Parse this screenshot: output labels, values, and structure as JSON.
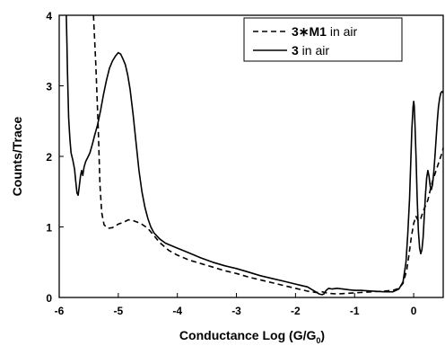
{
  "chart_data": {
    "type": "line",
    "xlabel": "Conductance Log (G/G",
    "xlabel_sub": "0",
    "xlabel_close": ")",
    "ylabel": "Counts/Trace",
    "xlim": [
      -6,
      0.5
    ],
    "ylim": [
      0,
      4
    ],
    "xticks": [
      -6,
      -5,
      -4,
      -3,
      -2,
      -1,
      0
    ],
    "yticks": [
      0,
      1,
      2,
      3,
      4
    ],
    "legend_position": "top-right",
    "series": [
      {
        "name_bold": "3∗M1",
        "name_rest": " in air",
        "style": "dashed",
        "color": "#000000",
        "points": [
          [
            -5.42,
            4.0
          ],
          [
            -5.38,
            3.3
          ],
          [
            -5.34,
            2.4
          ],
          [
            -5.31,
            1.6
          ],
          [
            -5.28,
            1.2
          ],
          [
            -5.24,
            1.03
          ],
          [
            -5.18,
            0.98
          ],
          [
            -5.1,
            0.99
          ],
          [
            -5.0,
            1.04
          ],
          [
            -4.9,
            1.07
          ],
          [
            -4.83,
            1.1
          ],
          [
            -4.75,
            1.09
          ],
          [
            -4.62,
            1.05
          ],
          [
            -4.5,
            0.98
          ],
          [
            -4.4,
            0.88
          ],
          [
            -4.3,
            0.78
          ],
          [
            -4.15,
            0.67
          ],
          [
            -4.0,
            0.6
          ],
          [
            -3.8,
            0.53
          ],
          [
            -3.6,
            0.48
          ],
          [
            -3.4,
            0.43
          ],
          [
            -3.2,
            0.38
          ],
          [
            -3.0,
            0.34
          ],
          [
            -2.8,
            0.29
          ],
          [
            -2.6,
            0.25
          ],
          [
            -2.4,
            0.21
          ],
          [
            -2.2,
            0.17
          ],
          [
            -2.0,
            0.13
          ],
          [
            -1.8,
            0.09
          ],
          [
            -1.65,
            0.07
          ],
          [
            -1.55,
            0.08
          ],
          [
            -1.45,
            0.06
          ],
          [
            -1.3,
            0.05
          ],
          [
            -1.1,
            0.06
          ],
          [
            -0.9,
            0.07
          ],
          [
            -0.7,
            0.08
          ],
          [
            -0.5,
            0.09
          ],
          [
            -0.35,
            0.1
          ],
          [
            -0.25,
            0.13
          ],
          [
            -0.18,
            0.2
          ],
          [
            -0.12,
            0.38
          ],
          [
            -0.08,
            0.6
          ],
          [
            -0.04,
            0.85
          ],
          [
            0.0,
            1.05
          ],
          [
            0.04,
            1.15
          ],
          [
            0.08,
            1.08
          ],
          [
            0.12,
            1.12
          ],
          [
            0.16,
            1.22
          ],
          [
            0.2,
            1.3
          ],
          [
            0.24,
            1.38
          ],
          [
            0.28,
            1.52
          ],
          [
            0.32,
            1.65
          ],
          [
            0.36,
            1.75
          ],
          [
            0.4,
            1.85
          ],
          [
            0.44,
            1.95
          ],
          [
            0.48,
            2.05
          ],
          [
            0.5,
            2.12
          ]
        ]
      },
      {
        "name_bold": "3",
        "name_rest": " in air",
        "style": "solid",
        "color": "#000000",
        "points": [
          [
            -5.88,
            4.0
          ],
          [
            -5.87,
            3.6
          ],
          [
            -5.86,
            3.2
          ],
          [
            -5.85,
            2.85
          ],
          [
            -5.84,
            2.55
          ],
          [
            -5.82,
            2.25
          ],
          [
            -5.8,
            2.05
          ],
          [
            -5.77,
            1.95
          ],
          [
            -5.74,
            1.82
          ],
          [
            -5.72,
            1.65
          ],
          [
            -5.7,
            1.48
          ],
          [
            -5.68,
            1.45
          ],
          [
            -5.66,
            1.58
          ],
          [
            -5.64,
            1.72
          ],
          [
            -5.62,
            1.8
          ],
          [
            -5.6,
            1.73
          ],
          [
            -5.58,
            1.85
          ],
          [
            -5.55,
            1.93
          ],
          [
            -5.52,
            1.98
          ],
          [
            -5.48,
            2.05
          ],
          [
            -5.44,
            2.17
          ],
          [
            -5.4,
            2.3
          ],
          [
            -5.35,
            2.45
          ],
          [
            -5.3,
            2.65
          ],
          [
            -5.25,
            2.88
          ],
          [
            -5.2,
            3.08
          ],
          [
            -5.15,
            3.25
          ],
          [
            -5.1,
            3.35
          ],
          [
            -5.05,
            3.42
          ],
          [
            -5.0,
            3.47
          ],
          [
            -4.96,
            3.45
          ],
          [
            -4.92,
            3.38
          ],
          [
            -4.88,
            3.3
          ],
          [
            -4.84,
            3.15
          ],
          [
            -4.8,
            2.95
          ],
          [
            -4.75,
            2.6
          ],
          [
            -4.7,
            2.2
          ],
          [
            -4.65,
            1.8
          ],
          [
            -4.6,
            1.5
          ],
          [
            -4.55,
            1.28
          ],
          [
            -4.5,
            1.12
          ],
          [
            -4.45,
            1.0
          ],
          [
            -4.4,
            0.92
          ],
          [
            -4.3,
            0.83
          ],
          [
            -4.2,
            0.77
          ],
          [
            -4.0,
            0.7
          ],
          [
            -3.8,
            0.63
          ],
          [
            -3.6,
            0.56
          ],
          [
            -3.4,
            0.5
          ],
          [
            -3.2,
            0.45
          ],
          [
            -3.0,
            0.41
          ],
          [
            -2.8,
            0.36
          ],
          [
            -2.6,
            0.31
          ],
          [
            -2.4,
            0.27
          ],
          [
            -2.2,
            0.23
          ],
          [
            -2.0,
            0.19
          ],
          [
            -1.9,
            0.17
          ],
          [
            -1.8,
            0.15
          ],
          [
            -1.7,
            0.1
          ],
          [
            -1.6,
            0.05
          ],
          [
            -1.55,
            0.04
          ],
          [
            -1.52,
            0.05
          ],
          [
            -1.48,
            0.1
          ],
          [
            -1.44,
            0.13
          ],
          [
            -1.38,
            0.12
          ],
          [
            -1.3,
            0.13
          ],
          [
            -1.2,
            0.12
          ],
          [
            -1.1,
            0.11
          ],
          [
            -1.0,
            0.1
          ],
          [
            -0.9,
            0.1
          ],
          [
            -0.7,
            0.09
          ],
          [
            -0.5,
            0.08
          ],
          [
            -0.35,
            0.08
          ],
          [
            -0.25,
            0.12
          ],
          [
            -0.18,
            0.22
          ],
          [
            -0.13,
            0.5
          ],
          [
            -0.1,
            0.9
          ],
          [
            -0.07,
            1.4
          ],
          [
            -0.05,
            1.9
          ],
          [
            -0.03,
            2.4
          ],
          [
            -0.01,
            2.7
          ],
          [
            0.0,
            2.78
          ],
          [
            0.01,
            2.72
          ],
          [
            0.02,
            2.5
          ],
          [
            0.04,
            2.0
          ],
          [
            0.06,
            1.4
          ],
          [
            0.08,
            0.95
          ],
          [
            0.1,
            0.7
          ],
          [
            0.12,
            0.62
          ],
          [
            0.14,
            0.68
          ],
          [
            0.16,
            0.85
          ],
          [
            0.18,
            1.15
          ],
          [
            0.2,
            1.45
          ],
          [
            0.22,
            1.7
          ],
          [
            0.24,
            1.8
          ],
          [
            0.26,
            1.72
          ],
          [
            0.28,
            1.58
          ],
          [
            0.3,
            1.53
          ],
          [
            0.32,
            1.6
          ],
          [
            0.34,
            1.78
          ],
          [
            0.36,
            2.0
          ],
          [
            0.38,
            2.25
          ],
          [
            0.4,
            2.5
          ],
          [
            0.42,
            2.7
          ],
          [
            0.44,
            2.82
          ],
          [
            0.46,
            2.9
          ],
          [
            0.48,
            2.92
          ],
          [
            0.5,
            2.9
          ]
        ]
      }
    ]
  }
}
